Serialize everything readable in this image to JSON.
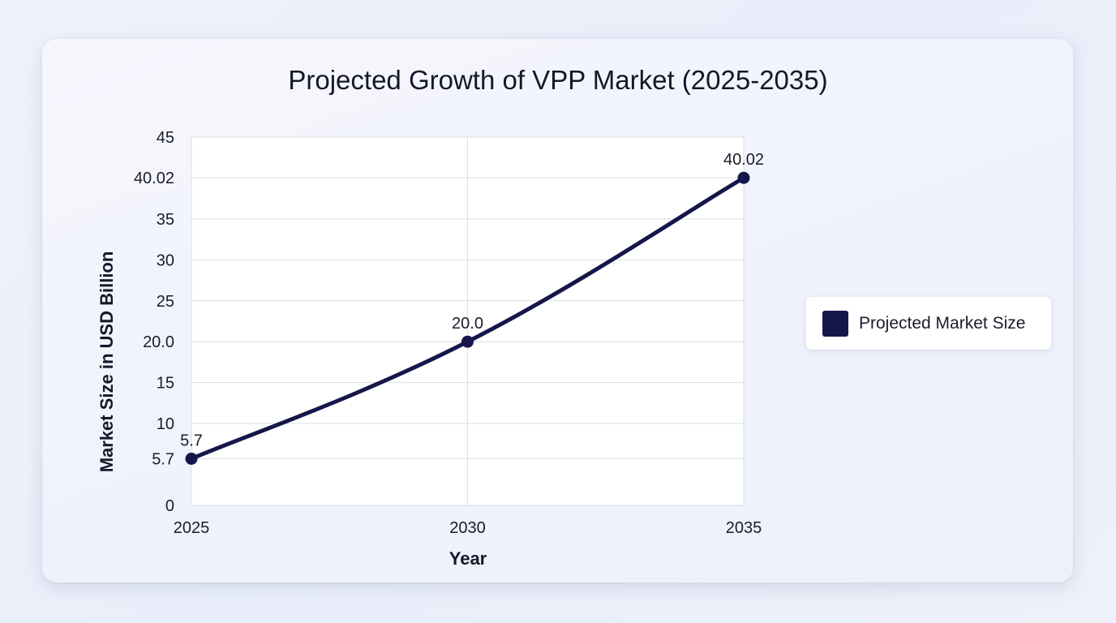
{
  "colors": {
    "series": "#15174a",
    "grid": "#dcdde3",
    "plot_background": "#ffffff"
  },
  "chart_data": {
    "type": "line",
    "title": "Projected Growth of VPP Market (2025-2035)",
    "xlabel": "Year",
    "ylabel": "Market Size in USD Billion",
    "x": [
      2025,
      2030,
      2035
    ],
    "x_tick_labels": [
      "2025",
      "2030",
      "2035"
    ],
    "series": [
      {
        "name": "Projected Market Size",
        "values": [
          5.7,
          20.0,
          40.02
        ],
        "data_labels": [
          "5.7",
          "20.0",
          "40.02"
        ]
      }
    ],
    "ylim": [
      0,
      45
    ],
    "y_ticks": [
      0,
      5.7,
      10,
      15,
      20.0,
      25,
      30,
      35,
      40.02,
      45
    ],
    "y_tick_labels": [
      "0",
      "5.7",
      "10",
      "15",
      "20.0",
      "25",
      "30",
      "35",
      "40.02",
      "45"
    ],
    "grid": true,
    "legend_position": "right"
  }
}
